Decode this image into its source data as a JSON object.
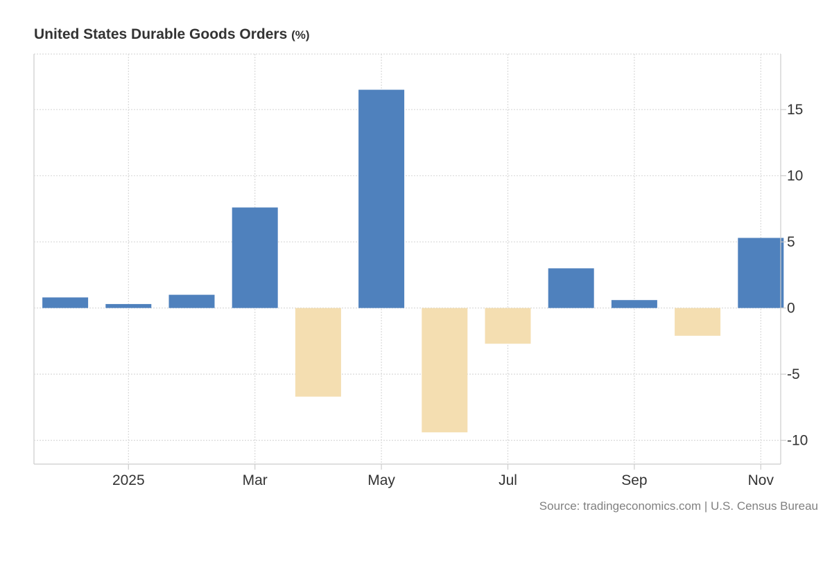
{
  "header": {
    "title": "United States Durable Goods Orders",
    "unit": "(%)"
  },
  "footer": {
    "source": "Source: tradingeconomics.com | U.S. Census Bureau"
  },
  "colors": {
    "positive": "#4f81bd",
    "negative": "#f4deb1",
    "grid": "#d9d9d9",
    "axis": "#cccccc"
  },
  "chart_data": {
    "type": "bar",
    "title": "United States Durable Goods Orders (%)",
    "xlabel": "",
    "ylabel": "",
    "categories": [
      "Dec 2024",
      "Jan 2025",
      "Feb 2025",
      "Mar 2025",
      "Apr 2025",
      "May 2025",
      "Jun 2025",
      "Jul 2025",
      "Aug 2025",
      "Sep 2025",
      "Oct 2025",
      "Nov 2025"
    ],
    "values": [
      0.8,
      0.3,
      1.0,
      7.6,
      -6.7,
      16.5,
      -9.4,
      -2.7,
      3.0,
      0.6,
      -2.1,
      5.3
    ],
    "x_tick_labels": [
      {
        "label": "2025",
        "category": "Jan 2025"
      },
      {
        "label": "Mar",
        "category": "Mar 2025"
      },
      {
        "label": "May",
        "category": "May 2025"
      },
      {
        "label": "Jul",
        "category": "Jul 2025"
      },
      {
        "label": "Sep",
        "category": "Sep 2025"
      },
      {
        "label": "Nov",
        "category": "Nov 2025"
      }
    ],
    "y_ticks": [
      15,
      10,
      5,
      0,
      -5,
      -10
    ],
    "y_tick_labels": [
      "15",
      "10",
      "5",
      "0",
      "-5",
      "-10"
    ],
    "ylim": [
      -11.8,
      19.2
    ],
    "y_axis_side": "right",
    "grid": true,
    "legend": "none"
  }
}
